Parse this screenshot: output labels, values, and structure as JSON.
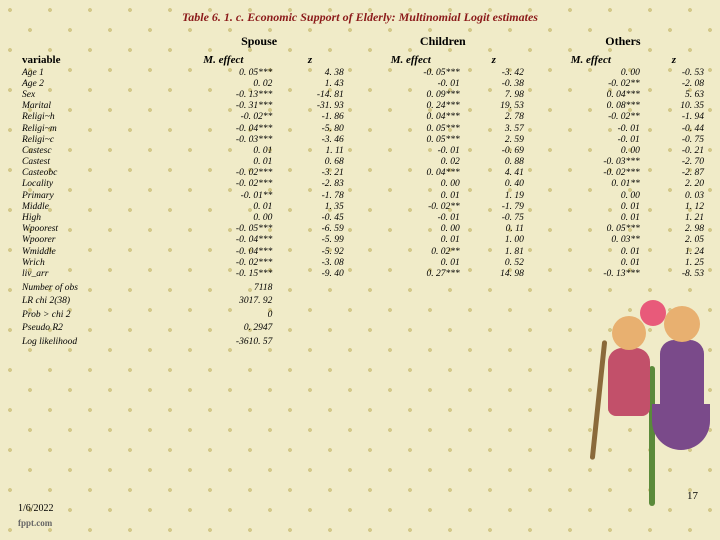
{
  "title": "Table 6. 1. c. Economic Support of Elderly: Multinomial Logit estimates",
  "groups": [
    "Spouse",
    "Children",
    "Others"
  ],
  "subheaders": {
    "variable": "variable",
    "meffect": "M. effect",
    "z": "z"
  },
  "rows": [
    {
      "v": "Age 1",
      "s_m": "0. 05***",
      "s_z": "4. 38",
      "c_m": "-0. 05***",
      "c_z": "-3. 42",
      "o_m": "0. 00",
      "o_z": "-0. 53"
    },
    {
      "v": "Age 2",
      "s_m": "0. 02",
      "s_z": "1. 43",
      "c_m": "-0. 01",
      "c_z": "-0. 38",
      "o_m": "-0. 02**",
      "o_z": "-2. 08"
    },
    {
      "v": "Sex",
      "s_m": "-0. 13***",
      "s_z": "-14. 81",
      "c_m": "0. 09***",
      "c_z": "7. 98",
      "o_m": "0. 04***",
      "o_z": "5. 63"
    },
    {
      "v": "Marital",
      "s_m": "-0. 31***",
      "s_z": "-31. 93",
      "c_m": "0. 24***",
      "c_z": "19. 53",
      "o_m": "0. 08***",
      "o_z": "10. 35"
    },
    {
      "v": "Religi~h",
      "s_m": "-0. 02**",
      "s_z": "-1. 86",
      "c_m": "0. 04***",
      "c_z": "2. 78",
      "o_m": "-0. 02**",
      "o_z": "-1. 94"
    },
    {
      "v": "Religi~m",
      "s_m": "-0. 04***",
      "s_z": "-5. 80",
      "c_m": "0. 05***",
      "c_z": "3. 57",
      "o_m": "-0. 01",
      "o_z": "-0. 44"
    },
    {
      "v": "Religi~c",
      "s_m": "-0. 03***",
      "s_z": "-3. 46",
      "c_m": "0. 05***",
      "c_z": "2. 59",
      "o_m": "-0. 01",
      "o_z": "-0. 75"
    },
    {
      "v": "Castesc",
      "s_m": "0. 01",
      "s_z": "1. 11",
      "c_m": "-0. 01",
      "c_z": "-0. 69",
      "o_m": "0. 00",
      "o_z": "-0. 21"
    },
    {
      "v": "Castest",
      "s_m": "0. 01",
      "s_z": "0. 68",
      "c_m": "0. 02",
      "c_z": "0. 88",
      "o_m": "-0. 03***",
      "o_z": "-2. 70"
    },
    {
      "v": "Casteobc",
      "s_m": "-0. 02***",
      "s_z": "-3. 21",
      "c_m": "0. 04***",
      "c_z": "4. 41",
      "o_m": "-0. 02***",
      "o_z": "-2. 87"
    },
    {
      "v": "Locality",
      "s_m": "-0. 02***",
      "s_z": "-2. 83",
      "c_m": "0. 00",
      "c_z": "0. 40",
      "o_m": "0. 01**",
      "o_z": "2. 20"
    },
    {
      "v": "Primary",
      "s_m": "-0. 01**",
      "s_z": "-1. 78",
      "c_m": "0. 01",
      "c_z": "1. 19",
      "o_m": "0. 00",
      "o_z": "0. 03"
    },
    {
      "v": "Middle",
      "s_m": "0. 01",
      "s_z": "1. 35",
      "c_m": "-0. 02**",
      "c_z": "-1. 79",
      "o_m": "0. 01",
      "o_z": "1. 12"
    },
    {
      "v": "High",
      "s_m": "0. 00",
      "s_z": "-0. 45",
      "c_m": "-0. 01",
      "c_z": "-0. 75",
      "o_m": "0. 01",
      "o_z": "1. 21"
    },
    {
      "v": "Wpoorest",
      "s_m": "-0. 05***",
      "s_z": "-6. 59",
      "c_m": "0. 00",
      "c_z": "0. 11",
      "o_m": "0. 05***",
      "o_z": "2. 98"
    },
    {
      "v": "Wpoorer",
      "s_m": "-0. 04***",
      "s_z": "-5. 99",
      "c_m": "0. 01",
      "c_z": "1. 00",
      "o_m": "0. 03**",
      "o_z": "2. 05"
    },
    {
      "v": "Wmiddle",
      "s_m": "-0. 04***",
      "s_z": "-5. 92",
      "c_m": "0. 02**",
      "c_z": "1. 81",
      "o_m": "0. 01",
      "o_z": "1. 24"
    },
    {
      "v": "Wrich",
      "s_m": "-0. 02***",
      "s_z": "-3. 08",
      "c_m": "0. 01",
      "c_z": "0. 52",
      "o_m": "0. 01",
      "o_z": "1. 25"
    },
    {
      "v": "liv_arr",
      "s_m": "-0. 15***",
      "s_z": "-9. 40",
      "c_m": "0. 27***",
      "c_z": "14. 98",
      "o_m": "-0. 13***",
      "o_z": "-8. 53"
    }
  ],
  "summary": [
    {
      "label": "Number of obs",
      "val": "7118"
    },
    {
      "label": "LR chi 2(38)",
      "val": "3017. 92"
    },
    {
      "label": "Prob > chi 2",
      "val": "0"
    },
    {
      "label": "Pseudo R2",
      "val": "0. 2947"
    },
    {
      "label": "Log likelihood",
      "val": "-3610. 57"
    }
  ],
  "page_num": "17",
  "date": "1/6/2022",
  "fpt": "fppt.com"
}
